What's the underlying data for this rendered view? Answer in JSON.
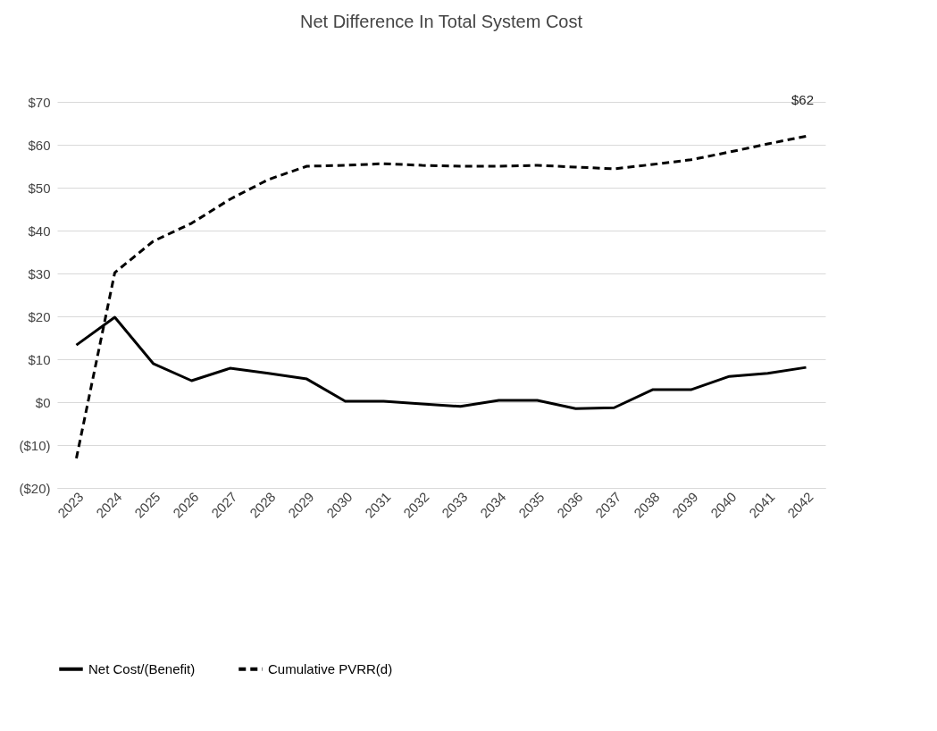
{
  "chart_data": {
    "type": "line",
    "title": "Net Difference In Total System Cost",
    "categories": [
      "2023",
      "2024",
      "2025",
      "2026",
      "2027",
      "2028",
      "2029",
      "2030",
      "2031",
      "2032",
      "2033",
      "2034",
      "2035",
      "2036",
      "2037",
      "2038",
      "2039",
      "2040",
      "2041",
      "2042"
    ],
    "series": [
      {
        "name": "Net Cost/(Benefit)",
        "color": "#000000",
        "line_style": "solid",
        "values": [
          13.3,
          19.8,
          9,
          5,
          7.9,
          6.7,
          5.4,
          0.2,
          0.2,
          -0.4,
          -1,
          0.4,
          0.4,
          -1.5,
          -1.3,
          2.9,
          2.9,
          6,
          6.7,
          8.1
        ]
      },
      {
        "name": "Cumulative PVRR(d)",
        "color": "#000000",
        "line_style": "dashed",
        "values": [
          -13.1,
          30.2,
          37.5,
          41.7,
          47.3,
          51.9,
          55,
          55.2,
          55.6,
          55.2,
          55,
          55,
          55.2,
          54.8,
          54.4,
          55.4,
          56.5,
          58.3,
          60.2,
          62
        ]
      }
    ],
    "ylim": [
      -20,
      70
    ],
    "yticks": [
      {
        "value": -20,
        "label": "($20)"
      },
      {
        "value": -10,
        "label": "($10)"
      },
      {
        "value": 0,
        "label": "$0"
      },
      {
        "value": 10,
        "label": "$10"
      },
      {
        "value": 20,
        "label": "$20"
      },
      {
        "value": 30,
        "label": "$30"
      },
      {
        "value": 40,
        "label": "$40"
      },
      {
        "value": 50,
        "label": "$50"
      },
      {
        "value": 60,
        "label": "$60"
      },
      {
        "value": 70,
        "label": "$70"
      }
    ],
    "grid": "y",
    "legend": "bottom",
    "marker": "none",
    "annotations": [
      {
        "text": "$62",
        "x": "2042",
        "y": 62
      }
    ]
  }
}
